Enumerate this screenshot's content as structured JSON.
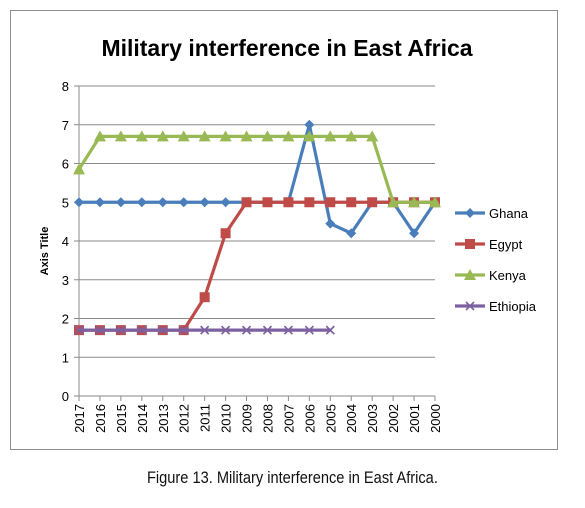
{
  "caption": "Figure 13. Military interference in East Africa.",
  "chart_data": {
    "type": "line",
    "title": "Military interference in East Africa",
    "xlabel": "",
    "ylabel": "Axis Title",
    "ylim": [
      0,
      8
    ],
    "yticks": [
      0,
      1,
      2,
      3,
      4,
      5,
      6,
      7,
      8
    ],
    "grid": true,
    "legend_position": "right",
    "categories": [
      "2017",
      "2016",
      "2015",
      "2014",
      "2013",
      "2012",
      "2011",
      "2010",
      "2009",
      "2008",
      "2007",
      "2006",
      "2005",
      "2004",
      "2003",
      "2002",
      "2001",
      "2000"
    ],
    "series": [
      {
        "name": "Ghana",
        "color": "#4a7ebb",
        "marker": "diamond",
        "values": [
          5,
          5,
          5,
          5,
          5,
          5,
          5,
          5,
          5,
          5,
          5,
          7,
          4.45,
          4.2,
          5,
          5,
          4.2,
          5
        ]
      },
      {
        "name": "Egypt",
        "color": "#be4b48",
        "marker": "square",
        "values": [
          1.7,
          1.7,
          1.7,
          1.7,
          1.7,
          1.7,
          2.55,
          4.2,
          5,
          5,
          5,
          5,
          5,
          5,
          5,
          5,
          5,
          5
        ]
      },
      {
        "name": "Kenya",
        "color": "#98b954",
        "marker": "triangle",
        "values": [
          5.85,
          6.7,
          6.7,
          6.7,
          6.7,
          6.7,
          6.7,
          6.7,
          6.7,
          6.7,
          6.7,
          6.7,
          6.7,
          6.7,
          6.7,
          5,
          5,
          5
        ]
      },
      {
        "name": "Ethiopia",
        "color": "#7d60a0",
        "marker": "x",
        "values": [
          1.7,
          1.7,
          1.7,
          1.7,
          1.7,
          1.7,
          1.7,
          1.7,
          1.7,
          1.7,
          1.7,
          1.7,
          1.7,
          null,
          null,
          null,
          null,
          null
        ]
      }
    ]
  }
}
